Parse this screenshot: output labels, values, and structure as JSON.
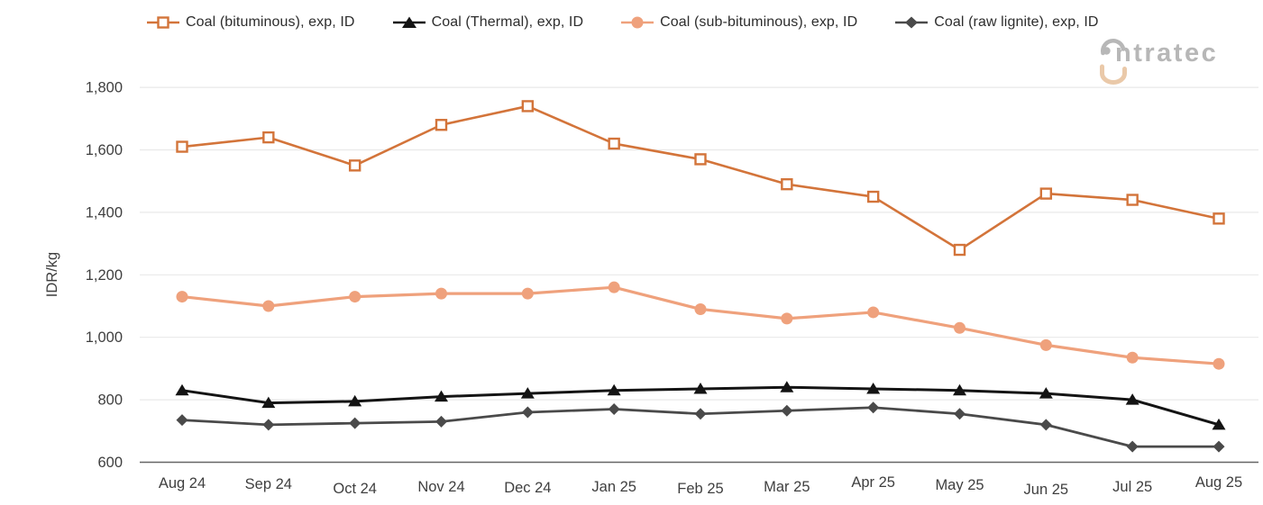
{
  "logo": {
    "name": "intratec",
    "text_part": "ntratec"
  },
  "chart_data": {
    "type": "line",
    "title": "",
    "xlabel": "",
    "ylabel": "IDR/kg",
    "legend_position": "top",
    "grid": "horizontal",
    "categories": [
      "Aug 24",
      "Sep 24",
      "Oct 24",
      "Nov 24",
      "Dec 24",
      "Jan 25",
      "Feb 25",
      "Mar 25",
      "Apr 25",
      "May 25",
      "Jun 25",
      "Jul 25",
      "Aug 25"
    ],
    "y_axis": {
      "min": 600,
      "max": 1800,
      "step": 200,
      "tick_labels": [
        "600",
        "800",
        "1,000",
        "1,200",
        "1,400",
        "1,600",
        "1,800"
      ]
    },
    "series": [
      {
        "name": "Coal (bituminous), exp, ID",
        "color": "#d3743a",
        "marker": "open-square",
        "values": [
          1610,
          1640,
          1550,
          1680,
          1740,
          1620,
          1570,
          1490,
          1450,
          1280,
          1460,
          1440,
          1380
        ]
      },
      {
        "name": "Coal (Thermal), exp, ID",
        "color": "#141414",
        "marker": "triangle",
        "values": [
          830,
          790,
          795,
          810,
          820,
          830,
          835,
          840,
          835,
          830,
          820,
          800,
          720
        ]
      },
      {
        "name": "Coal (sub-bituminous), exp, ID",
        "color": "#efa17c",
        "marker": "circle",
        "values": [
          1130,
          1100,
          1130,
          1140,
          1140,
          1160,
          1090,
          1060,
          1080,
          1030,
          975,
          935,
          915
        ]
      },
      {
        "name": "Coal (raw lignite), exp, ID",
        "color": "#4a4a4a",
        "marker": "diamond",
        "values": [
          735,
          720,
          725,
          730,
          760,
          770,
          755,
          765,
          775,
          755,
          720,
          650,
          650
        ]
      }
    ]
  }
}
